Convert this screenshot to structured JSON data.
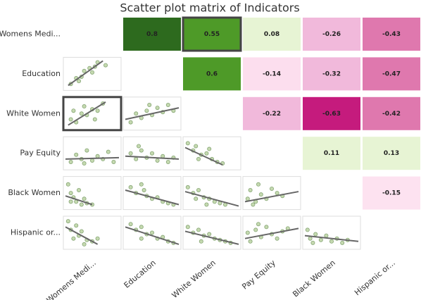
{
  "chart_data": {
    "type": "scatter_matrix",
    "title": "Scatter plot matrix of Indicators",
    "variables": [
      "Womens Medi...",
      "Education",
      "White Women",
      "Pay Equity",
      "Black Women",
      "Hispanic or..."
    ],
    "correlations": [
      {
        "row": 0,
        "col": 1,
        "value": 0.8,
        "color": "#2d6a1e"
      },
      {
        "row": 0,
        "col": 2,
        "value": 0.55,
        "color": "#4e9a28",
        "selected": true
      },
      {
        "row": 0,
        "col": 3,
        "value": 0.08,
        "color": "#e7f4d4"
      },
      {
        "row": 0,
        "col": 4,
        "value": -0.26,
        "color": "#f1b9db"
      },
      {
        "row": 0,
        "col": 5,
        "value": -0.43,
        "color": "#df78ae"
      },
      {
        "row": 1,
        "col": 2,
        "value": 0.6,
        "color": "#4e9a28"
      },
      {
        "row": 1,
        "col": 3,
        "value": -0.14,
        "color": "#fcdeee"
      },
      {
        "row": 1,
        "col": 4,
        "value": -0.32,
        "color": "#f1b9db"
      },
      {
        "row": 1,
        "col": 5,
        "value": -0.47,
        "color": "#df78ae"
      },
      {
        "row": 2,
        "col": 3,
        "value": -0.22,
        "color": "#f1b9db"
      },
      {
        "row": 2,
        "col": 4,
        "value": -0.63,
        "color": "#c51b7d"
      },
      {
        "row": 2,
        "col": 5,
        "value": -0.42,
        "color": "#df78ae"
      },
      {
        "row": 3,
        "col": 4,
        "value": 0.11,
        "color": "#e7f4d4"
      },
      {
        "row": 3,
        "col": 5,
        "value": 0.13,
        "color": "#e7f4d4"
      },
      {
        "row": 4,
        "col": 5,
        "value": -0.15,
        "color": "#fde2f0"
      }
    ],
    "point_color": "#c5d9b0",
    "trend_color": "#666666",
    "panels": [
      {
        "row": 1,
        "col": 0,
        "trend": [
          [
            0.05,
            0.1
          ],
          [
            0.7,
            0.95
          ]
        ],
        "points": [
          [
            0.1,
            0.15
          ],
          [
            0.2,
            0.35
          ],
          [
            0.3,
            0.4
          ],
          [
            0.35,
            0.6
          ],
          [
            0.45,
            0.7
          ],
          [
            0.55,
            0.75
          ],
          [
            0.6,
            0.9
          ],
          [
            0.75,
            0.8
          ],
          [
            0.25,
            0.25
          ],
          [
            0.5,
            0.55
          ]
        ]
      },
      {
        "row": 2,
        "col": 0,
        "selected": true,
        "trend": [
          [
            0.05,
            0.1
          ],
          [
            0.75,
            0.9
          ]
        ],
        "points": [
          [
            0.1,
            0.3
          ],
          [
            0.2,
            0.2
          ],
          [
            0.3,
            0.5
          ],
          [
            0.4,
            0.45
          ],
          [
            0.5,
            0.65
          ],
          [
            0.6,
            0.6
          ],
          [
            0.7,
            0.85
          ],
          [
            0.35,
            0.75
          ],
          [
            0.15,
            0.6
          ],
          [
            0.55,
            0.3
          ]
        ]
      },
      {
        "row": 2,
        "col": 1,
        "trend": [
          [
            0.0,
            0.3
          ],
          [
            1.0,
            0.7
          ]
        ],
        "points": [
          [
            0.1,
            0.2
          ],
          [
            0.2,
            0.5
          ],
          [
            0.3,
            0.35
          ],
          [
            0.4,
            0.6
          ],
          [
            0.5,
            0.45
          ],
          [
            0.6,
            0.7
          ],
          [
            0.7,
            0.55
          ],
          [
            0.8,
            0.8
          ],
          [
            0.9,
            0.6
          ],
          [
            0.45,
            0.8
          ]
        ]
      },
      {
        "row": 3,
        "col": 0,
        "trend": [
          [
            0.0,
            0.3
          ],
          [
            1.0,
            0.35
          ]
        ],
        "points": [
          [
            0.1,
            0.2
          ],
          [
            0.2,
            0.45
          ],
          [
            0.3,
            0.3
          ],
          [
            0.4,
            0.6
          ],
          [
            0.5,
            0.25
          ],
          [
            0.6,
            0.4
          ],
          [
            0.7,
            0.3
          ],
          [
            0.8,
            0.55
          ],
          [
            0.9,
            0.2
          ],
          [
            0.35,
            0.15
          ]
        ]
      },
      {
        "row": 3,
        "col": 1,
        "trend": [
          [
            0.0,
            0.4
          ],
          [
            1.0,
            0.3
          ]
        ],
        "points": [
          [
            0.1,
            0.5
          ],
          [
            0.2,
            0.3
          ],
          [
            0.3,
            0.6
          ],
          [
            0.4,
            0.35
          ],
          [
            0.5,
            0.5
          ],
          [
            0.6,
            0.25
          ],
          [
            0.7,
            0.4
          ],
          [
            0.8,
            0.2
          ],
          [
            0.9,
            0.35
          ],
          [
            0.25,
            0.75
          ]
        ]
      },
      {
        "row": 3,
        "col": 2,
        "trend": [
          [
            0.0,
            0.7
          ],
          [
            0.7,
            0.1
          ]
        ],
        "points": [
          [
            0.05,
            0.85
          ],
          [
            0.15,
            0.6
          ],
          [
            0.2,
            0.75
          ],
          [
            0.3,
            0.45
          ],
          [
            0.4,
            0.5
          ],
          [
            0.5,
            0.3
          ],
          [
            0.6,
            0.2
          ],
          [
            0.7,
            0.15
          ],
          [
            0.25,
            0.3
          ],
          [
            0.45,
            0.65
          ]
        ]
      },
      {
        "row": 4,
        "col": 0,
        "trend": [
          [
            0.0,
            0.4
          ],
          [
            0.5,
            0.1
          ]
        ],
        "points": [
          [
            0.05,
            0.8
          ],
          [
            0.1,
            0.5
          ],
          [
            0.15,
            0.35
          ],
          [
            0.2,
            0.2
          ],
          [
            0.3,
            0.1
          ],
          [
            0.25,
            0.6
          ],
          [
            0.4,
            0.15
          ],
          [
            0.5,
            0.1
          ],
          [
            0.1,
            0.2
          ],
          [
            0.35,
            0.3
          ]
        ]
      },
      {
        "row": 4,
        "col": 1,
        "trend": [
          [
            0.0,
            0.6
          ],
          [
            1.0,
            0.1
          ]
        ],
        "points": [
          [
            0.1,
            0.7
          ],
          [
            0.2,
            0.5
          ],
          [
            0.3,
            0.8
          ],
          [
            0.4,
            0.4
          ],
          [
            0.5,
            0.3
          ],
          [
            0.6,
            0.35
          ],
          [
            0.7,
            0.2
          ],
          [
            0.8,
            0.15
          ],
          [
            0.9,
            0.1
          ],
          [
            0.35,
            0.6
          ]
        ]
      },
      {
        "row": 4,
        "col": 2,
        "trend": [
          [
            0.0,
            0.55
          ],
          [
            1.0,
            0.05
          ]
        ],
        "points": [
          [
            0.05,
            0.7
          ],
          [
            0.15,
            0.5
          ],
          [
            0.25,
            0.6
          ],
          [
            0.35,
            0.35
          ],
          [
            0.45,
            0.3
          ],
          [
            0.55,
            0.2
          ],
          [
            0.65,
            0.15
          ],
          [
            0.75,
            0.1
          ],
          [
            0.2,
            0.3
          ],
          [
            0.4,
            0.1
          ]
        ]
      },
      {
        "row": 4,
        "col": 3,
        "trend": [
          [
            0.0,
            0.2
          ],
          [
            1.0,
            0.55
          ]
        ],
        "points": [
          [
            0.05,
            0.3
          ],
          [
            0.1,
            0.6
          ],
          [
            0.2,
            0.2
          ],
          [
            0.25,
            0.8
          ],
          [
            0.3,
            0.45
          ],
          [
            0.4,
            0.3
          ],
          [
            0.5,
            0.65
          ],
          [
            0.6,
            0.5
          ],
          [
            0.7,
            0.4
          ],
          [
            0.15,
            0.1
          ]
        ]
      },
      {
        "row": 5,
        "col": 0,
        "trend": [
          [
            0.0,
            0.7
          ],
          [
            0.6,
            0.1
          ]
        ],
        "points": [
          [
            0.05,
            0.9
          ],
          [
            0.1,
            0.6
          ],
          [
            0.2,
            0.75
          ],
          [
            0.25,
            0.4
          ],
          [
            0.3,
            0.55
          ],
          [
            0.4,
            0.25
          ],
          [
            0.5,
            0.2
          ],
          [
            0.15,
            0.3
          ],
          [
            0.35,
            0.1
          ],
          [
            0.6,
            0.3
          ]
        ]
      },
      {
        "row": 5,
        "col": 1,
        "trend": [
          [
            0.0,
            0.7
          ],
          [
            1.0,
            0.1
          ]
        ],
        "points": [
          [
            0.1,
            0.8
          ],
          [
            0.2,
            0.6
          ],
          [
            0.3,
            0.7
          ],
          [
            0.4,
            0.45
          ],
          [
            0.5,
            0.5
          ],
          [
            0.6,
            0.3
          ],
          [
            0.7,
            0.35
          ],
          [
            0.8,
            0.2
          ],
          [
            0.9,
            0.15
          ],
          [
            0.3,
            0.3
          ]
        ]
      },
      {
        "row": 5,
        "col": 2,
        "trend": [
          [
            0.0,
            0.55
          ],
          [
            1.0,
            0.1
          ]
        ],
        "points": [
          [
            0.05,
            0.7
          ],
          [
            0.15,
            0.5
          ],
          [
            0.25,
            0.6
          ],
          [
            0.35,
            0.4
          ],
          [
            0.45,
            0.45
          ],
          [
            0.55,
            0.3
          ],
          [
            0.65,
            0.25
          ],
          [
            0.75,
            0.2
          ],
          [
            0.85,
            0.15
          ],
          [
            0.3,
            0.2
          ]
        ]
      },
      {
        "row": 5,
        "col": 3,
        "trend": [
          [
            0.0,
            0.3
          ],
          [
            1.0,
            0.65
          ]
        ],
        "points": [
          [
            0.05,
            0.5
          ],
          [
            0.1,
            0.2
          ],
          [
            0.2,
            0.6
          ],
          [
            0.3,
            0.35
          ],
          [
            0.4,
            0.7
          ],
          [
            0.5,
            0.45
          ],
          [
            0.6,
            0.3
          ],
          [
            0.7,
            0.55
          ],
          [
            0.8,
            0.65
          ],
          [
            0.25,
            0.8
          ]
        ]
      },
      {
        "row": 5,
        "col": 4,
        "trend": [
          [
            0.0,
            0.4
          ],
          [
            1.0,
            0.2
          ]
        ],
        "points": [
          [
            0.05,
            0.6
          ],
          [
            0.1,
            0.3
          ],
          [
            0.2,
            0.45
          ],
          [
            0.3,
            0.25
          ],
          [
            0.4,
            0.4
          ],
          [
            0.5,
            0.2
          ],
          [
            0.6,
            0.3
          ],
          [
            0.7,
            0.15
          ],
          [
            0.8,
            0.25
          ],
          [
            0.15,
            0.15
          ]
        ]
      }
    ]
  }
}
